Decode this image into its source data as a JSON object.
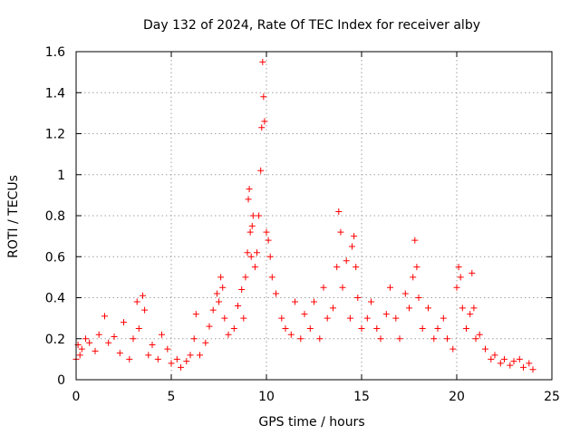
{
  "chart_data": {
    "type": "scatter",
    "title": "Day 132 of 2024, Rate Of TEC Index for receiver alby",
    "xlabel": "GPS time / hours",
    "ylabel": "ROTI / TECUs",
    "xlim": [
      0,
      25
    ],
    "ylim": [
      0,
      1.6
    ],
    "xticks": [
      "0",
      "5",
      "10",
      "15",
      "20",
      "25"
    ],
    "yticks": [
      "0",
      "0.2",
      "0.4",
      "0.6",
      "0.8",
      "1",
      "1.2",
      "1.4",
      "1.6"
    ],
    "grid": true,
    "marker": "+",
    "color": "#ff0000",
    "series": [
      {
        "x": [
          0.0,
          0.1,
          0.2,
          0.3,
          0.5,
          0.7,
          1.0,
          1.2,
          1.5,
          1.7,
          2.0,
          2.3,
          2.5,
          2.8,
          3.0,
          3.2,
          3.3,
          3.5,
          3.6,
          3.8,
          4.0,
          4.3,
          4.5,
          4.8,
          5.0,
          5.3,
          5.5,
          5.8,
          6.0,
          6.2,
          6.3,
          6.5,
          6.8,
          7.0,
          7.2,
          7.4,
          7.5,
          7.6,
          7.7,
          7.8,
          8.0,
          8.3,
          8.5,
          8.7,
          8.8,
          8.9,
          9.0,
          9.05,
          9.1,
          9.15,
          9.2,
          9.25,
          9.3,
          9.4,
          9.5,
          9.6,
          9.7,
          9.75,
          9.8,
          9.85,
          9.9,
          10.0,
          10.1,
          10.2,
          10.3,
          10.5,
          10.8,
          11.0,
          11.3,
          11.5,
          11.8,
          12.0,
          12.3,
          12.5,
          12.8,
          13.0,
          13.2,
          13.5,
          13.7,
          13.8,
          13.9,
          14.0,
          14.2,
          14.4,
          14.5,
          14.6,
          14.7,
          14.8,
          15.0,
          15.3,
          15.5,
          15.8,
          16.0,
          16.3,
          16.5,
          16.8,
          17.0,
          17.3,
          17.5,
          17.7,
          17.8,
          17.9,
          18.0,
          18.2,
          18.5,
          18.8,
          19.0,
          19.3,
          19.5,
          19.8,
          20.0,
          20.1,
          20.2,
          20.3,
          20.5,
          20.7,
          20.8,
          20.9,
          21.0,
          21.2,
          21.5,
          21.8,
          22.0,
          22.3,
          22.5,
          22.8,
          23.0,
          23.3,
          23.5,
          23.8,
          24.0
        ],
        "y": [
          0.1,
          0.17,
          0.12,
          0.15,
          0.2,
          0.18,
          0.14,
          0.22,
          0.31,
          0.18,
          0.21,
          0.13,
          0.28,
          0.1,
          0.2,
          0.38,
          0.25,
          0.41,
          0.34,
          0.12,
          0.17,
          0.1,
          0.22,
          0.15,
          0.08,
          0.1,
          0.06,
          0.09,
          0.12,
          0.2,
          0.32,
          0.12,
          0.18,
          0.26,
          0.34,
          0.42,
          0.38,
          0.5,
          0.45,
          0.3,
          0.22,
          0.25,
          0.36,
          0.44,
          0.3,
          0.5,
          0.62,
          0.88,
          0.93,
          0.72,
          0.6,
          0.75,
          0.8,
          0.55,
          0.62,
          0.8,
          1.02,
          1.23,
          1.55,
          1.38,
          1.26,
          0.72,
          0.68,
          0.6,
          0.5,
          0.42,
          0.3,
          0.25,
          0.22,
          0.38,
          0.2,
          0.32,
          0.25,
          0.38,
          0.2,
          0.45,
          0.3,
          0.35,
          0.55,
          0.82,
          0.72,
          0.45,
          0.58,
          0.3,
          0.65,
          0.7,
          0.55,
          0.4,
          0.25,
          0.3,
          0.38,
          0.25,
          0.2,
          0.32,
          0.45,
          0.3,
          0.2,
          0.42,
          0.35,
          0.5,
          0.68,
          0.55,
          0.4,
          0.25,
          0.35,
          0.2,
          0.25,
          0.3,
          0.2,
          0.15,
          0.45,
          0.55,
          0.5,
          0.35,
          0.25,
          0.32,
          0.52,
          0.35,
          0.2,
          0.22,
          0.15,
          0.1,
          0.12,
          0.08,
          0.1,
          0.07,
          0.09,
          0.1,
          0.06,
          0.08,
          0.05
        ]
      }
    ]
  }
}
